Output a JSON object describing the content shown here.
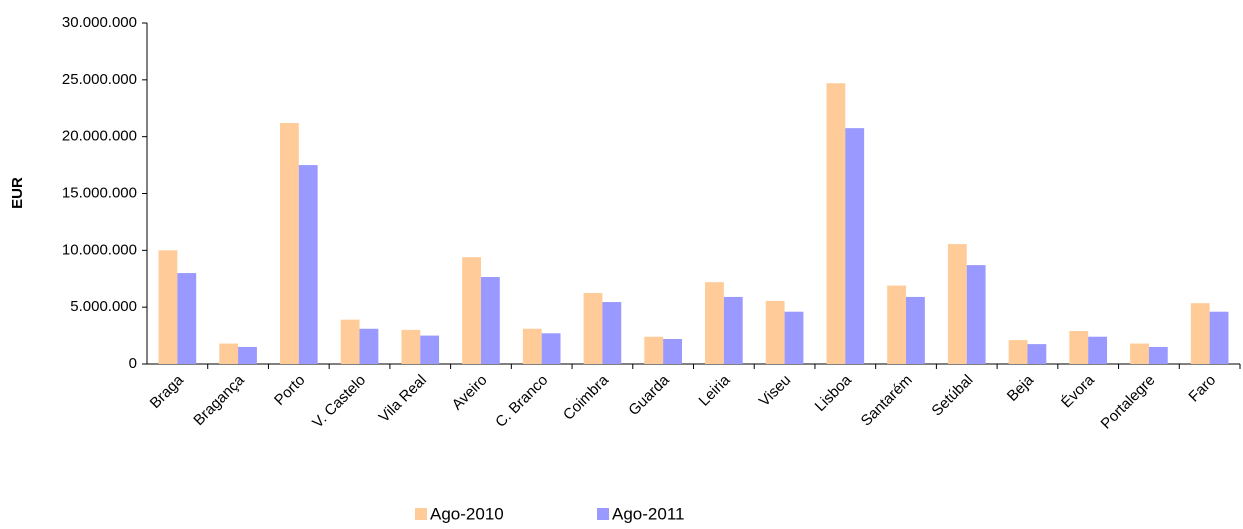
{
  "chart_data": {
    "type": "bar",
    "y_label": "EUR",
    "categories": [
      "Braga",
      "Bragança",
      "Porto",
      "V. Castelo",
      "Vila Real",
      "Aveiro",
      "C. Branco",
      "Coimbra",
      "Guarda",
      "Leiria",
      "Viseu",
      "Lisboa",
      "Santarém",
      "Setúbal",
      "Beja",
      "Évora",
      "Portalegre",
      "Faro"
    ],
    "series": [
      {
        "name": "Ago-2010",
        "color": "#ffcc99",
        "values": [
          10000000,
          1800000,
          21200000,
          3900000,
          3000000,
          9400000,
          3100000,
          6250000,
          2400000,
          7200000,
          5550000,
          24700000,
          6900000,
          10550000,
          2100000,
          2900000,
          1800000,
          5350000
        ]
      },
      {
        "name": "Ago-2011",
        "color": "#9999ff",
        "values": [
          8000000,
          1500000,
          17500000,
          3100000,
          2500000,
          7650000,
          2700000,
          5450000,
          2200000,
          5900000,
          4600000,
          20750000,
          5900000,
          8700000,
          1750000,
          2400000,
          1500000,
          4600000
        ]
      }
    ],
    "ylim": [
      0,
      30000000
    ],
    "yticks": [
      0,
      {
        "value": 5000000,
        "label": "5.000.000"
      },
      {
        "value": 10000000,
        "label": "10.000.000"
      },
      {
        "value": 15000000,
        "label": "15.000.000"
      },
      {
        "value": 20000000,
        "label": "20.000.000"
      },
      {
        "value": 25000000,
        "label": "25.000.000"
      },
      {
        "value": 30000000,
        "label": "30.000.000"
      }
    ],
    "legend": "bottom"
  }
}
